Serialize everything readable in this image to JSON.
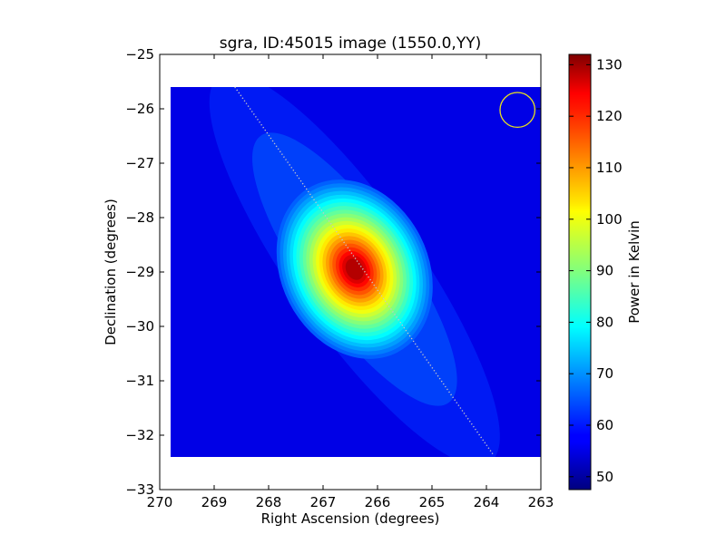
{
  "chart_data": {
    "type": "heatmap",
    "title": "sgra, ID:45015 image (1550.0,YY)",
    "xlabel": "Right Ascension (degrees)",
    "ylabel": "Declination (degrees)",
    "xlim": [
      270,
      263
    ],
    "ylim": [
      -33,
      -25
    ],
    "x_ticks": [
      270,
      269,
      268,
      267,
      266,
      265,
      264,
      263
    ],
    "y_ticks": [
      -33,
      -32,
      -31,
      -30,
      -29,
      -28,
      -27,
      -26,
      -25
    ],
    "x_tick_labels": [
      "270",
      "269",
      "268",
      "267",
      "266",
      "265",
      "264",
      "263"
    ],
    "y_tick_labels": [
      "−33",
      "−32",
      "−31",
      "−30",
      "−29",
      "−28",
      "−27",
      "−26",
      "−25"
    ],
    "image_extent": {
      "ra": [
        269.8,
        263.0
      ],
      "dec": [
        -32.4,
        -25.6
      ]
    },
    "background_power": 56,
    "source": {
      "ra": 266.42,
      "dec": -28.95,
      "peak_power": 131
    },
    "galactic_plane": {
      "start": [
        268.62,
        -25.6
      ],
      "end": [
        263.88,
        -32.35
      ],
      "color": "#c8c8c8"
    },
    "beam_marker": {
      "ra": 263.43,
      "dec": -26.02,
      "radius_deg": 0.32,
      "color": "#e8e020"
    },
    "colorbar": {
      "label": "Power in Kelvin",
      "min": 47.5,
      "max": 132,
      "ticks": [
        50,
        60,
        70,
        80,
        90,
        100,
        110,
        120,
        130
      ],
      "tick_labels": [
        "50",
        "60",
        "70",
        "80",
        "90",
        "100",
        "110",
        "120",
        "130"
      ],
      "colormap": "jet"
    },
    "grid": false,
    "legend": "none"
  }
}
